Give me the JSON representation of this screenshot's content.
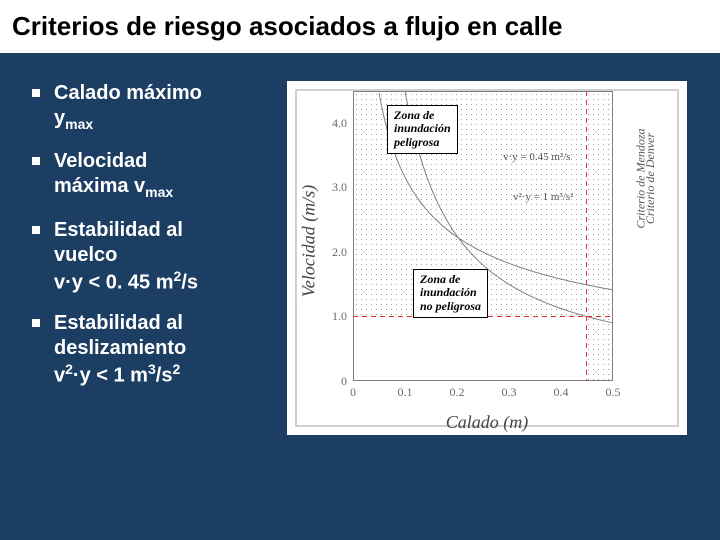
{
  "title": "Criterios de riesgo asociados a flujo en calle",
  "bullets": {
    "b1_line1": "Calado máximo",
    "b1_line2_pre": "y",
    "b1_line2_sub": "max",
    "b2_line1": "Velocidad",
    "b2_line2_pre": "máxima v",
    "b2_line2_sub": "max",
    "b3_line1": "Estabilidad al",
    "b3_line2": "vuelco",
    "b3_line3": "v·y < 0. 45 m",
    "b3_line3_sup": "2",
    "b3_line3_post": "/s",
    "b4_line1": "Estabilidad al",
    "b4_line2": "deslizamiento",
    "b4_line3_pre": "v",
    "b4_line3_sup1": "2",
    "b4_line3_mid": "·y < 1 m",
    "b4_line3_sup2": "3",
    "b4_line3_post": "/s",
    "b4_line3_sup3": "2"
  },
  "chart": {
    "type": "line",
    "xlabel": "Calado (m)",
    "ylabel": "Velocidad (m/s)",
    "xlim": [
      0,
      0.5
    ],
    "ylim": [
      0,
      4.5
    ],
    "xticks": [
      0,
      0.1,
      0.2,
      0.3,
      0.4,
      0.5
    ],
    "xtick_labels": [
      "0",
      "0.1",
      "0.2",
      "0.3",
      "0.4",
      "0.5"
    ],
    "yticks": [
      0,
      1.0,
      2.0,
      3.0,
      4.0
    ],
    "ytick_labels": [
      "0",
      "1.0",
      "2.0",
      "3.0",
      "4.0"
    ],
    "red_vline_x": 0.45,
    "red_hline_y": 1.0,
    "curve_vy": {
      "c": 0.45,
      "color": "#808080"
    },
    "curve_v2y": {
      "c": 1.0,
      "color": "#808080"
    },
    "zone_danger": {
      "line1": "Zona de",
      "line2": "inundación",
      "line3": "peligrosa"
    },
    "zone_safe": {
      "line1": "Zona de",
      "line2": "inundación",
      "line3": "no peligrosa"
    },
    "eq1": "v·y = 0.45 m²/s",
    "eq2": "v²·y = 1 m³/s²",
    "right_label_1": "Criterio de Mendoza",
    "right_label_2": "Criterio de Denver",
    "background_color": "#ffffff",
    "axis_color": "#808080",
    "tick_color": "#6a6a6a",
    "dot_color": "#a0a0a0",
    "red": "#e03030",
    "title_fontsize": 18,
    "tick_fontsize": 12
  }
}
